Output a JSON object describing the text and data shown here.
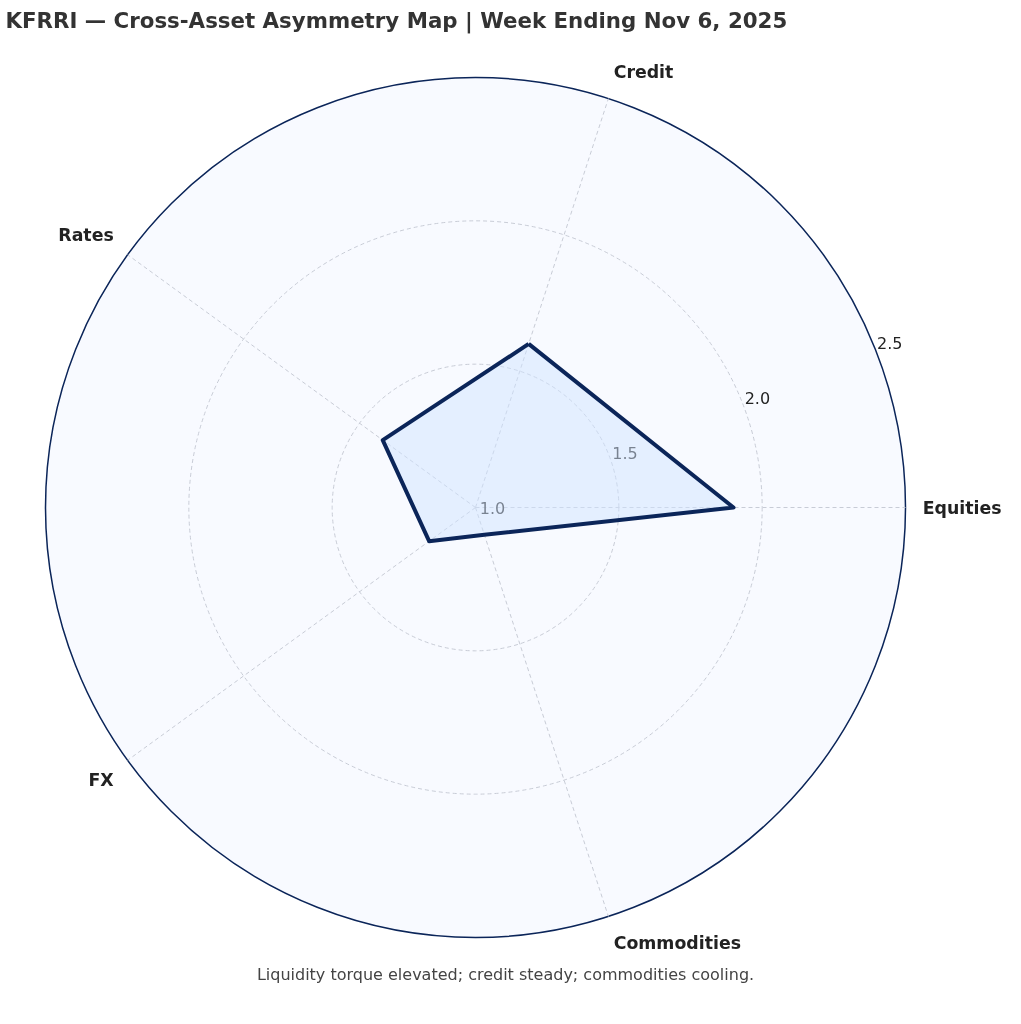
{
  "chart_data": {
    "type": "radar",
    "title": "KFRRI — Cross-Asset Asymmetry Map | Week Ending Nov 6, 2025",
    "categories": [
      "Credit",
      "Equities",
      "Commodities",
      "FX",
      "Rates"
    ],
    "series": [
      {
        "color": "#0b2559",
        "values": [
          1.6,
          1.9,
          1.1,
          1.2,
          1.4
        ]
      }
    ],
    "ylim": [
      1.0,
      2.5
    ],
    "yticks": [
      {
        "value": 1.0,
        "label": "1.0"
      },
      {
        "value": 1.5,
        "label": "1.5"
      },
      {
        "value": 2.0,
        "label": "2.0"
      },
      {
        "value": 2.5,
        "label": "2.5"
      }
    ],
    "grid": true,
    "annotations": [
      "Liquidity torque elevated; credit steady; commodities cooling."
    ]
  }
}
